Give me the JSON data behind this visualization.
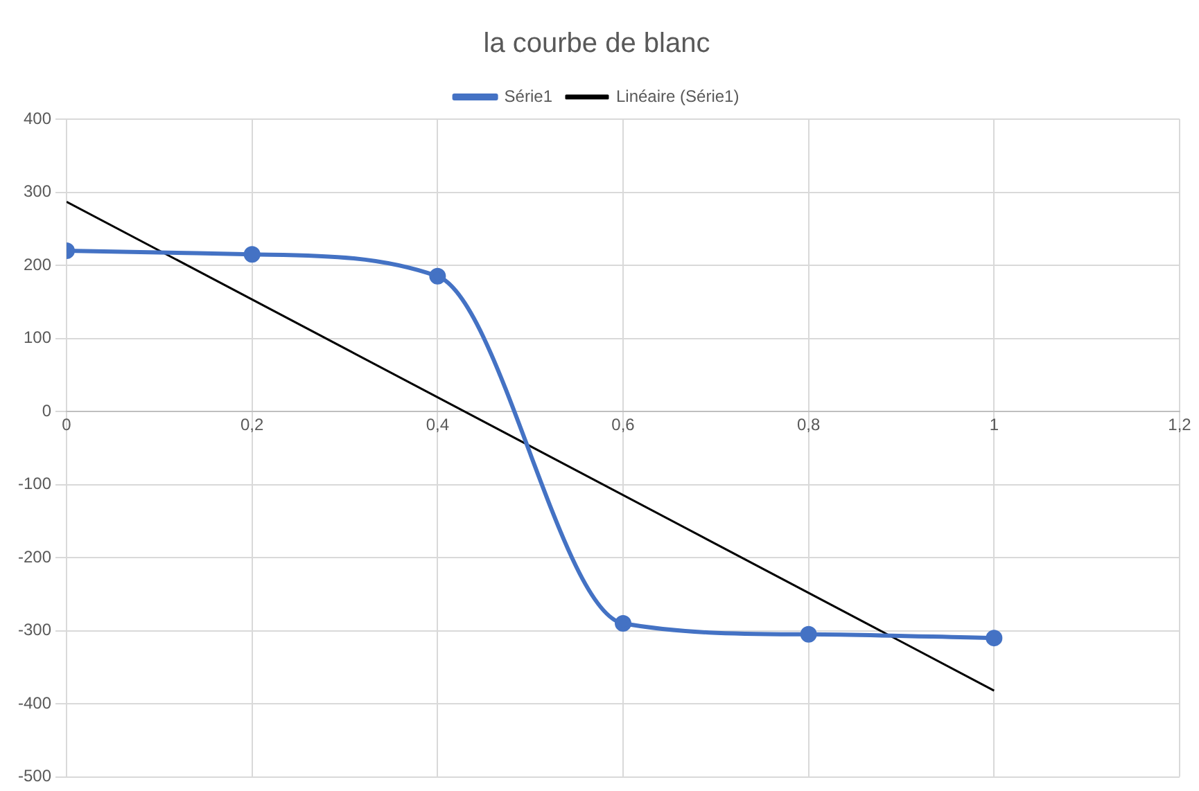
{
  "chart_data": {
    "type": "line",
    "title": "la courbe de blanc",
    "x": [
      0,
      0.2,
      0.4,
      0.6,
      0.8,
      1
    ],
    "series": [
      {
        "name": "Série1",
        "color": "#4472c4",
        "values": [
          220,
          215,
          185,
          -290,
          -305,
          -310
        ],
        "marker": "circle"
      },
      {
        "name": "Linéaire (Série1)",
        "color": "#000000",
        "type": "line",
        "x": [
          0,
          1
        ],
        "values": [
          287,
          -382
        ],
        "marker": "none"
      }
    ],
    "xlim": [
      0,
      1.2
    ],
    "xticks": [
      0,
      {
        "value": 0.2,
        "label": "0,2"
      },
      {
        "value": 0.4,
        "label": "0,4"
      },
      {
        "value": 0.6,
        "label": "0,6"
      },
      {
        "value": 0.8,
        "label": "0,8"
      },
      1,
      {
        "value": 1.2,
        "label": "1,2"
      }
    ],
    "ylim": [
      -500,
      400
    ],
    "yticks": [
      -500,
      -400,
      -300,
      -200,
      -100,
      0,
      100,
      200,
      300,
      400
    ],
    "grid": true,
    "legend": "top"
  }
}
